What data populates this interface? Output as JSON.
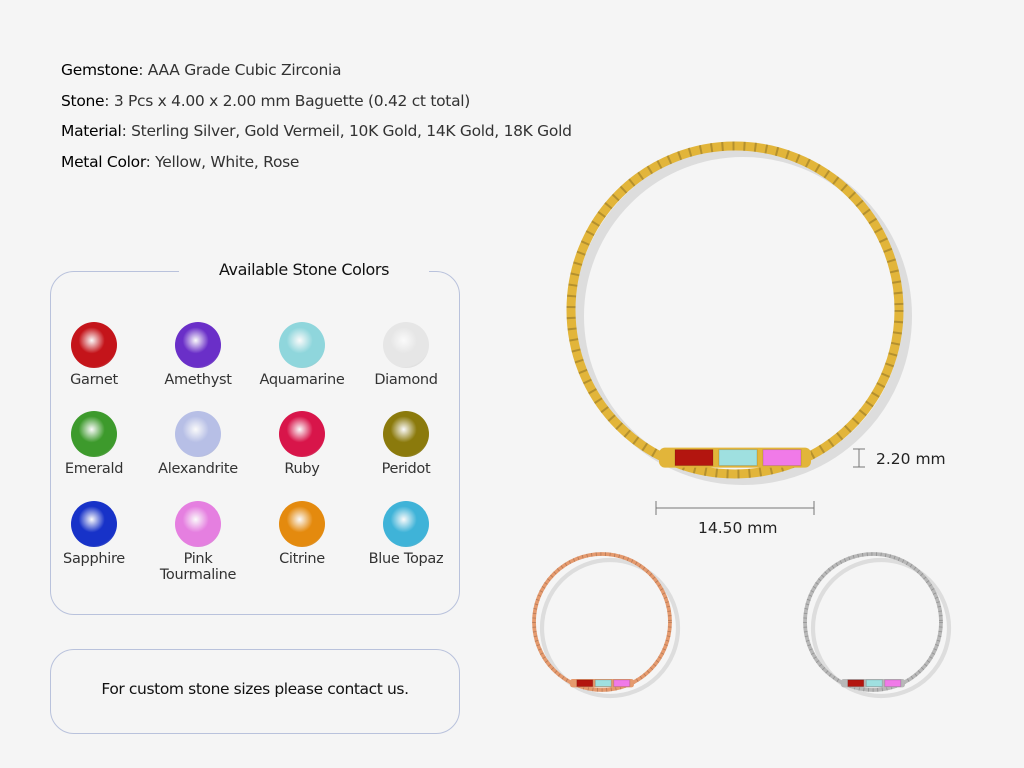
{
  "specs": [
    {
      "label": "Gemstone",
      "value": ": AAA Grade Cubic Zirconia"
    },
    {
      "label": "Stone",
      "value": ": 3 Pcs x 4.00 x 2.00 mm Baguette (0.42 ct total)"
    },
    {
      "label": "Material",
      "value": ": Sterling Silver, Gold Vermeil, 10K Gold, 14K Gold, 18K Gold"
    },
    {
      "label": "Metal Color",
      "value": ": Yellow, White, Rose"
    }
  ],
  "stone_colors": {
    "title": "Available Stone Colors",
    "items": [
      {
        "name": "Garnet",
        "color": "#c4141a"
      },
      {
        "name": "Amethyst",
        "color": "#6a2fc8"
      },
      {
        "name": "Aquamarine",
        "color": "#8fd6dc"
      },
      {
        "name": "Diamond",
        "color": "#e6e6e6"
      },
      {
        "name": "Emerald",
        "color": "#3d9a2c"
      },
      {
        "name": "Alexandrite",
        "color": "#b7bfe6"
      },
      {
        "name": "Ruby",
        "color": "#d8154a"
      },
      {
        "name": "Peridot",
        "color": "#8b7a0c"
      },
      {
        "name": "Sapphire",
        "color": "#1732c8"
      },
      {
        "name": "Pink\nTourmaline",
        "color": "#e57fe0"
      },
      {
        "name": "Citrine",
        "color": "#e48a0e"
      },
      {
        "name": "Blue Topaz",
        "color": "#3fb3d8"
      }
    ]
  },
  "contact_text": "For custom stone sizes please contact us.",
  "dimensions": {
    "height": "2.20 mm",
    "width": "14.50 mm"
  },
  "metal_colors": {
    "yellow": "#e2b53a",
    "rose": "#e59a6e",
    "white": "#b8b8b8"
  },
  "bar_stones": [
    "#b3150f",
    "#9fe0e0",
    "#f07ae8"
  ]
}
